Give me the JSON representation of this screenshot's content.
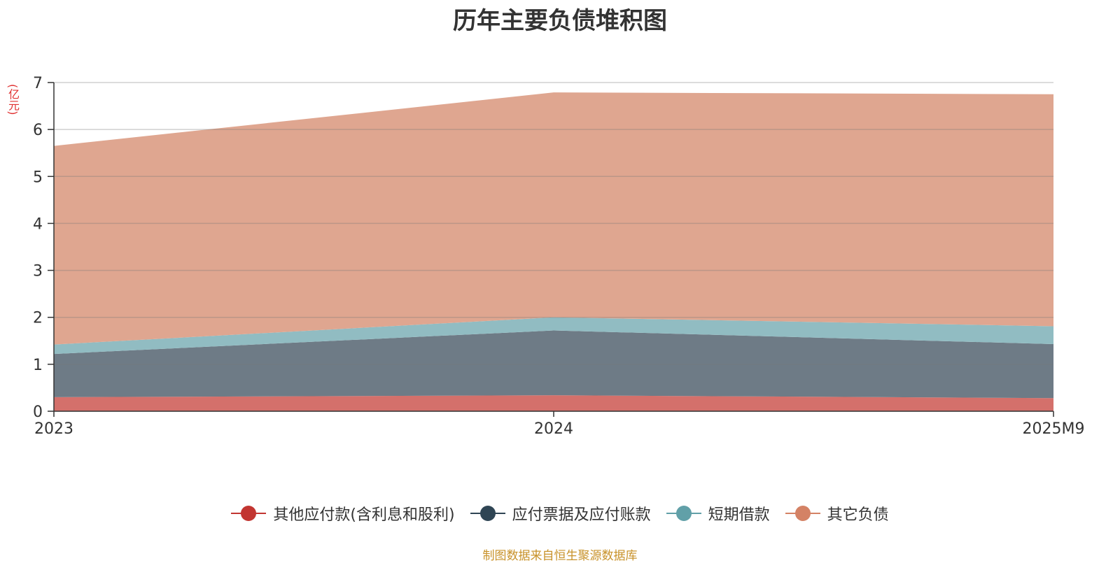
{
  "chart_data": {
    "type": "area",
    "stacked": true,
    "title": "历年主要负债堆积图",
    "ylabel": "(亿元)",
    "categories": [
      "2023",
      "2024",
      "2025M9"
    ],
    "ylim": [
      0,
      7
    ],
    "yticks": [
      "0",
      "1",
      "2",
      "3",
      "4",
      "5",
      "6",
      "7"
    ],
    "grid": true,
    "legend_position": "bottom",
    "series": [
      {
        "name": "其他应付款(含利息和股利)",
        "values": [
          0.3,
          0.34,
          0.28
        ],
        "color": "#c23531",
        "fill": "#d4706b"
      },
      {
        "name": "应付票据及应付账款",
        "values": [
          0.92,
          1.38,
          1.15
        ],
        "color": "#2f4554",
        "fill": "#6e7b86"
      },
      {
        "name": "短期借款",
        "values": [
          0.2,
          0.28,
          0.38
        ],
        "color": "#61a0a8",
        "fill": "#91bcc2"
      },
      {
        "name": "其它负债",
        "values": [
          4.23,
          4.79,
          4.94
        ],
        "color": "#d48265",
        "fill": "#dfa690"
      }
    ]
  },
  "source_note": "制图数据来自恒生聚源数据库"
}
